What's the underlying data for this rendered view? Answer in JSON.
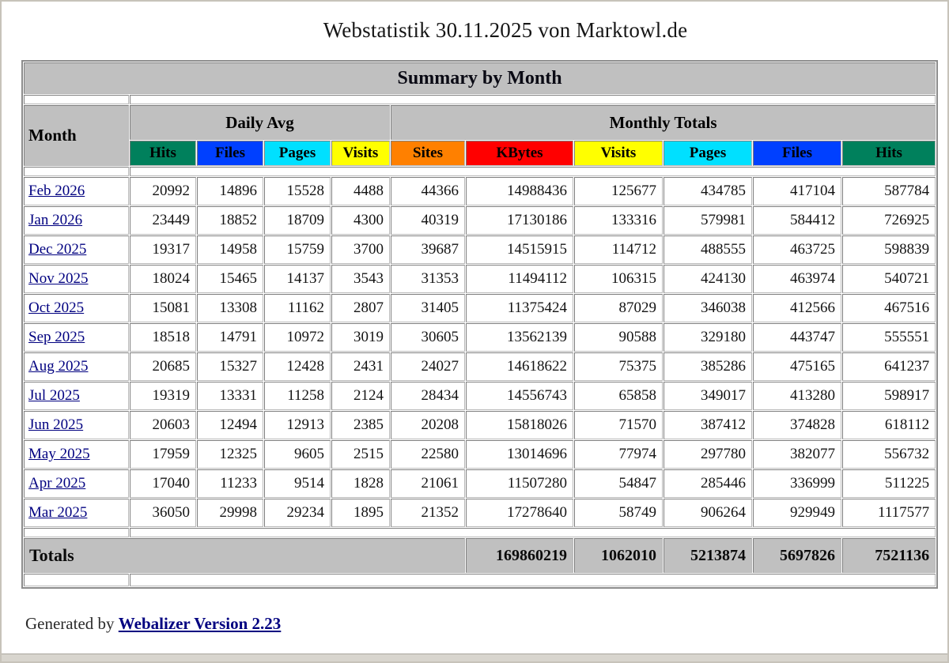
{
  "page": {
    "title": "Webstatistik 30.11.2025 von Marktowl.de",
    "footer_prefix": "Generated by ",
    "footer_link": "Webalizer Version 2.23"
  },
  "colors": {
    "header_gray": "#C0C0C0",
    "link_navy": "#000080",
    "hits_green": "#00805C",
    "files_blue": "#0040FF",
    "pages_cyan": "#00E0FF",
    "visits_yellow": "#FFFF00",
    "sites_orange": "#FF8000",
    "kbytes_red": "#FF0000"
  },
  "table": {
    "title": "Summary by Month",
    "month_header": "Month",
    "group_headers": {
      "daily_avg": "Daily Avg",
      "monthly_totals": "Monthly Totals"
    },
    "columns": [
      {
        "key": "daily-hits",
        "label": "Hits",
        "color": "#00805C"
      },
      {
        "key": "daily-files",
        "label": "Files",
        "color": "#0040FF"
      },
      {
        "key": "daily-pages",
        "label": "Pages",
        "color": "#00E0FF"
      },
      {
        "key": "daily-visits",
        "label": "Visits",
        "color": "#FFFF00"
      },
      {
        "key": "monthly-sites",
        "label": "Sites",
        "color": "#FF8000"
      },
      {
        "key": "monthly-kbytes",
        "label": "KBytes",
        "color": "#FF0000"
      },
      {
        "key": "monthly-visits",
        "label": "Visits",
        "color": "#FFFF00"
      },
      {
        "key": "monthly-pages",
        "label": "Pages",
        "color": "#00E0FF"
      },
      {
        "key": "monthly-files",
        "label": "Files",
        "color": "#0040FF"
      },
      {
        "key": "monthly-hits",
        "label": "Hits",
        "color": "#00805C"
      }
    ],
    "rows": [
      {
        "month": "Feb 2026",
        "values": [
          20992,
          14896,
          15528,
          4488,
          44366,
          14988436,
          125677,
          434785,
          417104,
          587784
        ]
      },
      {
        "month": "Jan 2026",
        "values": [
          23449,
          18852,
          18709,
          4300,
          40319,
          17130186,
          133316,
          579981,
          584412,
          726925
        ]
      },
      {
        "month": "Dec 2025",
        "values": [
          19317,
          14958,
          15759,
          3700,
          39687,
          14515915,
          114712,
          488555,
          463725,
          598839
        ]
      },
      {
        "month": "Nov 2025",
        "values": [
          18024,
          15465,
          14137,
          3543,
          31353,
          11494112,
          106315,
          424130,
          463974,
          540721
        ]
      },
      {
        "month": "Oct 2025",
        "values": [
          15081,
          13308,
          11162,
          2807,
          31405,
          11375424,
          87029,
          346038,
          412566,
          467516
        ]
      },
      {
        "month": "Sep 2025",
        "values": [
          18518,
          14791,
          10972,
          3019,
          30605,
          13562139,
          90588,
          329180,
          443747,
          555551
        ]
      },
      {
        "month": "Aug 2025",
        "values": [
          20685,
          15327,
          12428,
          2431,
          24027,
          14618622,
          75375,
          385286,
          475165,
          641237
        ]
      },
      {
        "month": "Jul 2025",
        "values": [
          19319,
          13331,
          11258,
          2124,
          28434,
          14556743,
          65858,
          349017,
          413280,
          598917
        ]
      },
      {
        "month": "Jun 2025",
        "values": [
          20603,
          12494,
          12913,
          2385,
          20208,
          15818026,
          71570,
          387412,
          374828,
          618112
        ]
      },
      {
        "month": "May 2025",
        "values": [
          17959,
          12325,
          9605,
          2515,
          22580,
          13014696,
          77974,
          297780,
          382077,
          556732
        ]
      },
      {
        "month": "Apr 2025",
        "values": [
          17040,
          11233,
          9514,
          1828,
          21061,
          11507280,
          54847,
          285446,
          336999,
          511225
        ]
      },
      {
        "month": "Mar 2025",
        "values": [
          36050,
          29998,
          29234,
          1895,
          21352,
          17278640,
          58749,
          906264,
          929949,
          1117577
        ]
      }
    ],
    "totals": {
      "label": "Totals",
      "values": [
        169860219,
        1062010,
        5213874,
        5697826,
        7521136
      ]
    }
  }
}
